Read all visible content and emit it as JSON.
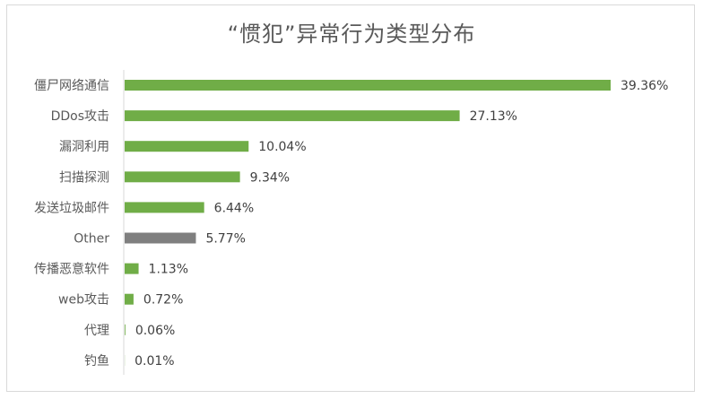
{
  "chart_data": {
    "type": "bar",
    "orientation": "horizontal",
    "title": "“惯犯”异常行为类型分布",
    "categories": [
      "僵尸网络通信",
      "DDos攻击",
      "漏洞利用",
      "扫描探测",
      "发送垃圾邮件",
      "Other",
      "传播恶意软件",
      "web攻击",
      "代理",
      "钓鱼"
    ],
    "values": [
      39.36,
      27.13,
      10.04,
      9.34,
      6.44,
      5.77,
      1.13,
      0.72,
      0.06,
      0.01
    ],
    "value_labels": [
      "39.36%",
      "27.13%",
      "10.04%",
      "9.34%",
      "6.44%",
      "5.77%",
      "1.13%",
      "0.72%",
      "0.06%",
      "0.01%"
    ],
    "colors": [
      "#70ad47",
      "#70ad47",
      "#70ad47",
      "#70ad47",
      "#70ad47",
      "#7f7f7f",
      "#70ad47",
      "#70ad47",
      "#70ad47",
      "#70ad47"
    ],
    "grid": false,
    "legend": false
  }
}
